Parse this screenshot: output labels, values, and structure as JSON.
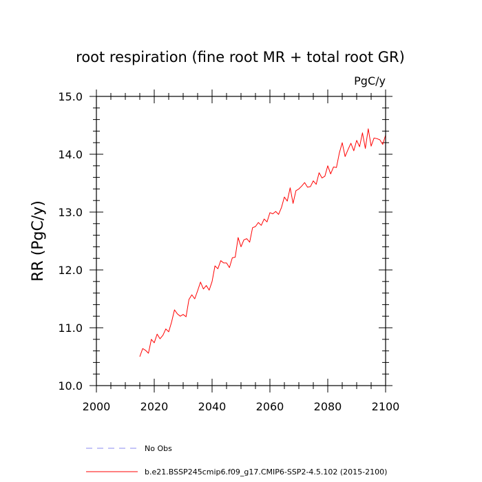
{
  "chart_data": {
    "type": "line",
    "title": "root respiration (fine root MR + total root GR)",
    "units": "PgC/y",
    "ylabel": "RR  (PgC/y)",
    "xlabel": "",
    "xlim": [
      2000,
      2100
    ],
    "ylim": [
      10.0,
      15.0
    ],
    "x_ticks": [
      "2000",
      "2020",
      "2040",
      "2060",
      "2080",
      "2100"
    ],
    "y_ticks": [
      "10.0",
      "11.0",
      "12.0",
      "13.0",
      "14.0",
      "15.0"
    ],
    "series": [
      {
        "name": "b.e21.BSSP245cmip6.f09_g17.CMIP6-SSP2-4.5.102 (2015-2100)",
        "color": "#ff0000",
        "style": "solid",
        "x": [
          2015,
          2016,
          2017,
          2018,
          2019,
          2020,
          2021,
          2022,
          2023,
          2024,
          2025,
          2026,
          2027,
          2028,
          2029,
          2030,
          2031,
          2032,
          2033,
          2034,
          2035,
          2036,
          2037,
          2038,
          2039,
          2040,
          2041,
          2042,
          2043,
          2044,
          2045,
          2046,
          2047,
          2048,
          2049,
          2050,
          2051,
          2052,
          2053,
          2054,
          2055,
          2056,
          2057,
          2058,
          2059,
          2060,
          2061,
          2062,
          2063,
          2064,
          2065,
          2066,
          2067,
          2068,
          2069,
          2070,
          2071,
          2072,
          2073,
          2074,
          2075,
          2076,
          2077,
          2078,
          2079,
          2080,
          2081,
          2082,
          2083,
          2084,
          2085,
          2086,
          2087,
          2088,
          2089,
          2090,
          2091,
          2092,
          2093,
          2094,
          2095,
          2096,
          2097,
          2098,
          2099,
          2100
        ],
        "y": [
          10.5,
          10.64,
          10.61,
          10.56,
          10.8,
          10.74,
          10.89,
          10.81,
          10.87,
          10.98,
          10.93,
          11.1,
          11.31,
          11.24,
          11.2,
          11.23,
          11.19,
          11.49,
          11.57,
          11.5,
          11.64,
          11.79,
          11.67,
          11.73,
          11.65,
          11.8,
          12.07,
          12.02,
          12.16,
          12.12,
          12.12,
          12.04,
          12.21,
          12.22,
          12.56,
          12.4,
          12.52,
          12.54,
          12.48,
          12.73,
          12.75,
          12.82,
          12.77,
          12.88,
          12.83,
          12.99,
          12.97,
          13.01,
          12.96,
          13.08,
          13.26,
          13.19,
          13.42,
          13.15,
          13.37,
          13.4,
          13.45,
          13.51,
          13.43,
          13.44,
          13.54,
          13.48,
          13.68,
          13.59,
          13.62,
          13.8,
          13.66,
          13.78,
          13.77,
          14.02,
          14.2,
          13.96,
          14.08,
          14.19,
          14.06,
          14.24,
          14.13,
          14.37,
          14.1,
          14.44,
          14.14,
          14.28,
          14.27,
          14.25,
          14.17,
          14.33
        ]
      }
    ],
    "legend": [
      {
        "label": "No Obs",
        "color": "#8a8af0",
        "style": "dashed"
      },
      {
        "label": "b.e21.BSSP245cmip6.f09_g17.CMIP6-SSP2-4.5.102 (2015-2100)",
        "color": "#ff0000",
        "style": "solid"
      }
    ],
    "legend_position": "bottom-left"
  }
}
